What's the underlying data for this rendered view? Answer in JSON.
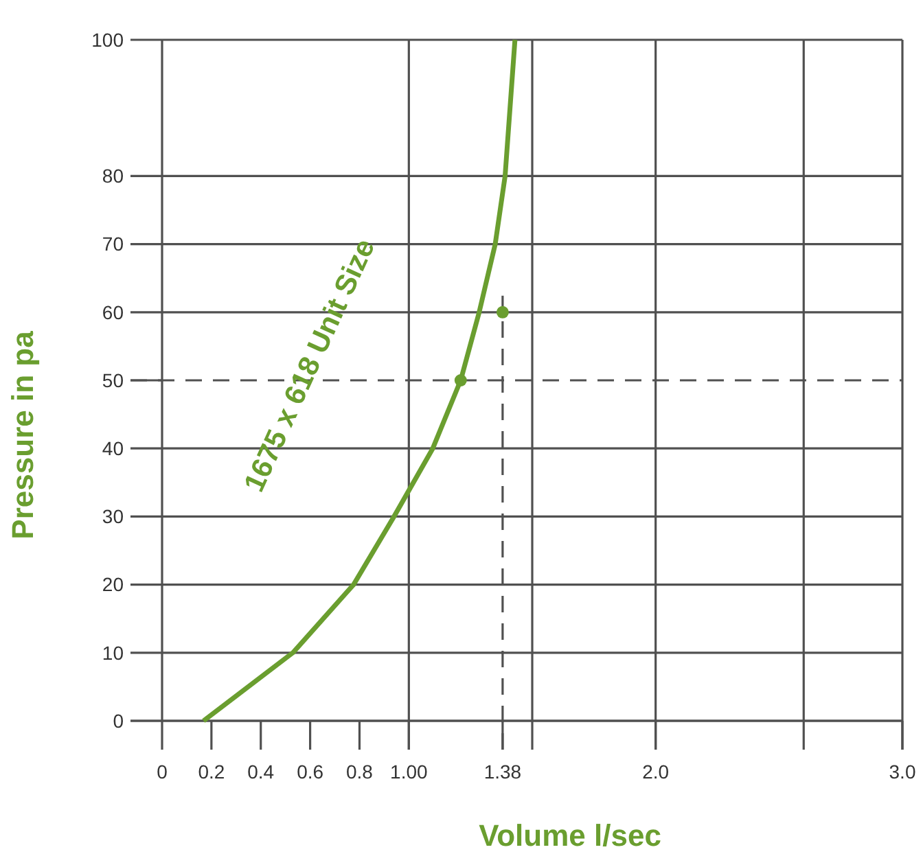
{
  "chart_data": {
    "type": "line",
    "xlabel": "Volume l/sec",
    "ylabel": "Pressure in pa",
    "xlim": [
      0,
      3
    ],
    "ylim": [
      0,
      100
    ],
    "xticks": [
      0,
      0.2,
      0.4,
      0.6,
      0.8,
      {
        "value": 1,
        "label": "1.00"
      },
      1.38,
      {
        "value": 2,
        "label": "2.0"
      },
      {
        "value": 3,
        "label": "3.0"
      }
    ],
    "yticks": [
      0,
      10,
      20,
      30,
      40,
      50,
      60,
      70,
      80,
      100
    ],
    "grid": "y",
    "legend": false,
    "series": [
      {
        "name": "1675 x 618 Unit Size",
        "color": "#6a9e2f",
        "x": [
          0.168,
          0.53,
          0.776,
          0.94,
          1.097,
          1.21,
          1.285,
          1.35,
          1.39,
          1.43
        ],
        "values": [
          0,
          10,
          20,
          30,
          40,
          50,
          60,
          70,
          80,
          100
        ]
      },
      {
        "type": "scatter",
        "color": "#6a9e2f",
        "marker": "circle",
        "x": [
          1.21,
          1.38
        ],
        "values": [
          50,
          60
        ]
      }
    ],
    "ref_lines": [
      {
        "axis": "y",
        "value": 50,
        "line_style": "dashed"
      },
      {
        "axis": "x",
        "value": 1.38,
        "line_style": "dashed"
      },
      {
        "axis": "x",
        "value": 1,
        "line_style": "solid"
      },
      {
        "axis": "x",
        "value": 1.5,
        "line_style": "solid"
      },
      {
        "axis": "x",
        "value": 2,
        "line_style": "solid"
      },
      {
        "axis": "x",
        "value": 2.6,
        "line_style": "solid"
      }
    ]
  }
}
